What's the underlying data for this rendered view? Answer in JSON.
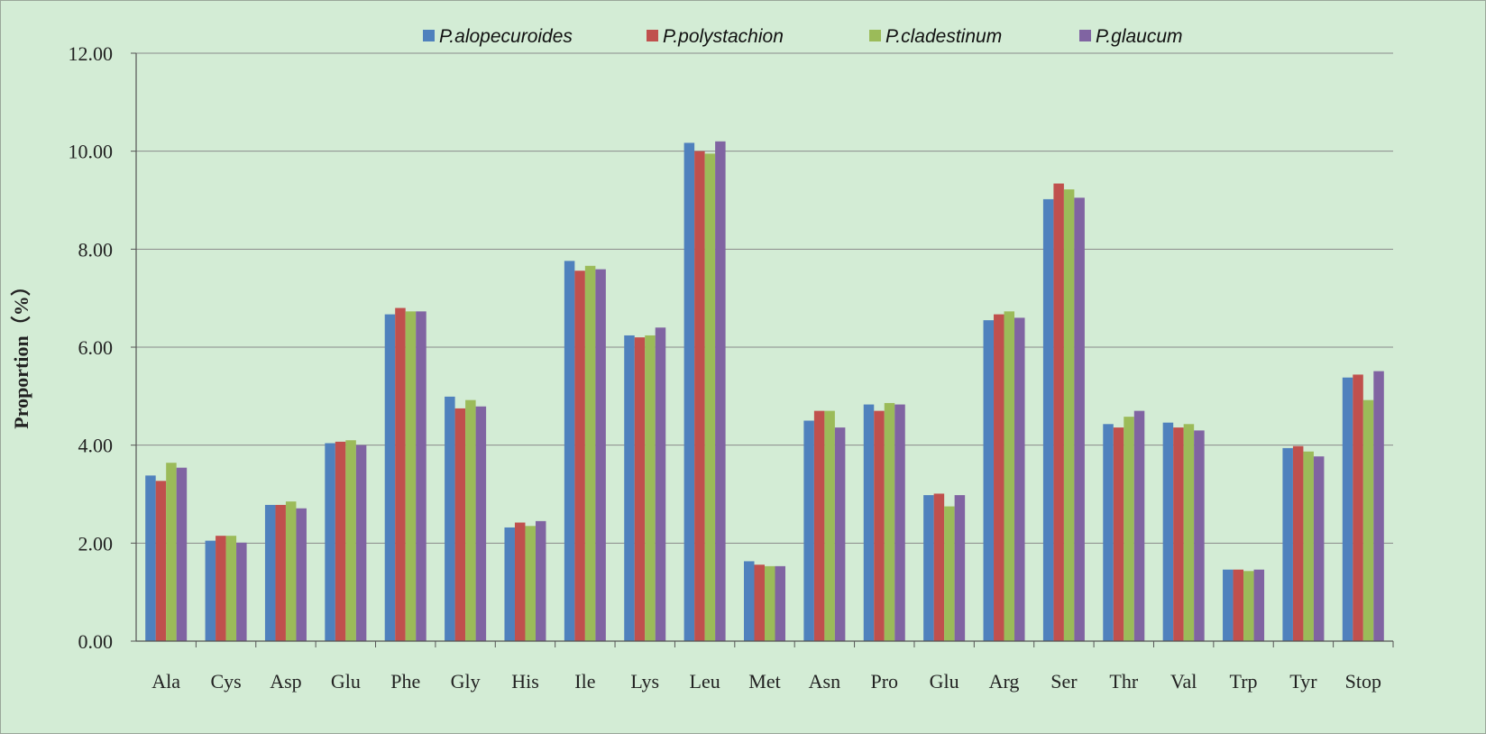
{
  "chart_data": {
    "type": "bar",
    "ylabel": "Proportion（%）",
    "ylim": [
      0,
      12
    ],
    "ytick_step": 2,
    "ytick_labels": [
      "0.00",
      "2.00",
      "4.00",
      "6.00",
      "8.00",
      "10.00",
      "12.00"
    ],
    "grid": true,
    "legend_position": "top",
    "categories": [
      "Ala",
      "Cys",
      "Asp",
      "Glu",
      "Phe",
      "Gly",
      "His",
      "Ile",
      "Lys",
      "Leu",
      "Met",
      "Asn",
      "Pro",
      "Glu",
      "Arg",
      "Ser",
      "Thr",
      "Val",
      "Trp",
      "Tyr",
      "Stop"
    ],
    "series": [
      {
        "name": "P.alopecuroides",
        "color": "#4f81bd",
        "values": [
          3.38,
          2.05,
          2.78,
          4.04,
          6.67,
          4.99,
          2.32,
          7.76,
          6.24,
          10.17,
          1.63,
          4.5,
          4.83,
          2.98,
          6.55,
          9.02,
          4.43,
          4.46,
          1.46,
          3.94,
          5.38
        ]
      },
      {
        "name": "P.polystachion",
        "color": "#c0504d",
        "values": [
          3.27,
          2.15,
          2.78,
          4.07,
          6.8,
          4.75,
          2.42,
          7.56,
          6.2,
          10.0,
          1.56,
          4.7,
          4.7,
          3.01,
          6.67,
          9.34,
          4.36,
          4.36,
          1.46,
          3.98,
          5.44
        ]
      },
      {
        "name": "P.cladestinum",
        "color": "#9bbb59",
        "values": [
          3.64,
          2.15,
          2.85,
          4.1,
          6.73,
          4.92,
          2.35,
          7.66,
          6.24,
          9.95,
          1.53,
          4.7,
          4.86,
          2.75,
          6.73,
          9.22,
          4.58,
          4.43,
          1.43,
          3.87,
          4.92
        ]
      },
      {
        "name": "P.glaucum",
        "color": "#8064a2",
        "values": [
          3.54,
          2.01,
          2.71,
          4.0,
          6.73,
          4.79,
          2.45,
          7.59,
          6.4,
          10.2,
          1.53,
          4.36,
          4.83,
          2.98,
          6.6,
          9.05,
          4.7,
          4.3,
          1.46,
          3.77,
          5.51
        ]
      }
    ]
  },
  "colors": {
    "background": "#d3ecd5",
    "grid": "#8a8a8a",
    "axis": "#555555"
  }
}
